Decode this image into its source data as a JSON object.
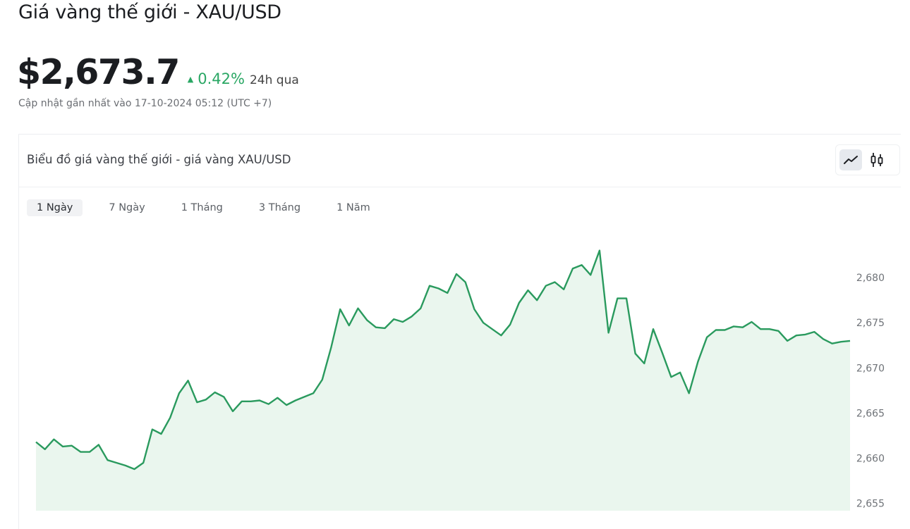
{
  "header": {
    "title": "Giá vàng thế giới - XAU/USD",
    "price": "$2,673.7",
    "change_icon": "triangle-up-icon",
    "change_symbol": "▲",
    "change": "0.42%",
    "change_period": "24h qua",
    "updated": "Cập nhật gần nhất vào 17-10-2024 05:12 (UTC +7)"
  },
  "card": {
    "title": "Biểu đồ giá vàng thế giới - giá vàng XAU/USD",
    "chart_type_buttons": [
      {
        "icon": "line-chart-icon",
        "active": true
      },
      {
        "icon": "candlestick-chart-icon",
        "active": false
      }
    ],
    "tabs": [
      {
        "label": "1 Ngày",
        "active": true
      },
      {
        "label": "7 Ngày",
        "active": false
      },
      {
        "label": "1 Tháng",
        "active": false
      },
      {
        "label": "3 Tháng",
        "active": false
      },
      {
        "label": "1 Năm",
        "active": false
      }
    ]
  },
  "colors": {
    "line": "#2a9a5e",
    "fill": "#eaf6ee",
    "positive": "#2aa764"
  },
  "chart_data": {
    "type": "area",
    "title": "",
    "xlabel": "",
    "ylabel": "",
    "ylim": [
      2654.2,
      2685.0
    ],
    "y_axis_position": "right",
    "grid": false,
    "yticks": [
      2655,
      2660,
      2665,
      2670,
      2675,
      2680
    ],
    "ytick_labels": [
      "2,655",
      "2,660",
      "2,665",
      "2,670",
      "2,675",
      "2,680"
    ],
    "values": [
      2661.8,
      2661.0,
      2662.1,
      2661.3,
      2661.4,
      2660.7,
      2660.7,
      2661.5,
      2659.8,
      2659.5,
      2659.2,
      2658.8,
      2659.5,
      2663.2,
      2662.7,
      2664.5,
      2667.2,
      2668.6,
      2666.2,
      2666.5,
      2667.3,
      2666.8,
      2665.2,
      2666.3,
      2666.3,
      2666.4,
      2666.0,
      2666.7,
      2665.9,
      2666.4,
      2666.8,
      2667.2,
      2668.7,
      2672.3,
      2676.5,
      2674.7,
      2676.6,
      2675.3,
      2674.5,
      2674.4,
      2675.4,
      2675.1,
      2675.7,
      2676.6,
      2679.1,
      2678.8,
      2678.3,
      2680.4,
      2679.5,
      2676.5,
      2675.0,
      2674.3,
      2673.6,
      2674.8,
      2677.2,
      2678.6,
      2677.5,
      2679.1,
      2679.5,
      2678.7,
      2681.0,
      2681.4,
      2680.3,
      2683.0,
      2673.9,
      2677.7,
      2677.7,
      2671.6,
      2670.5,
      2674.3,
      2671.7,
      2669.0,
      2669.5,
      2667.2,
      2670.7,
      2673.4,
      2674.2,
      2674.2,
      2674.6,
      2674.5,
      2675.1,
      2674.3,
      2674.3,
      2674.1,
      2673.0,
      2673.6,
      2673.7,
      2674.0,
      2673.2,
      2672.7,
      2672.9,
      2673.0
    ]
  }
}
